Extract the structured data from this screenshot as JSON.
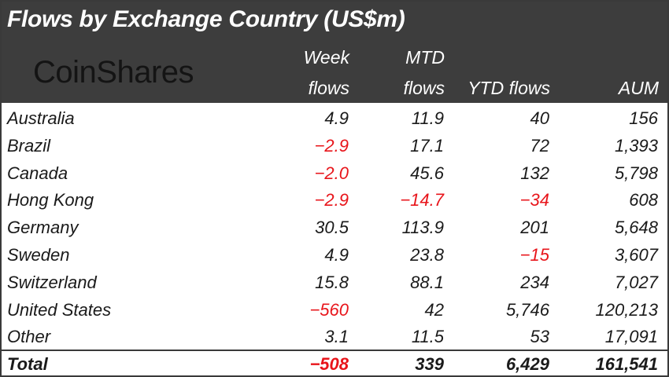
{
  "title": "Flows by Exchange Country (US$m)",
  "logo_text": "CoinShares",
  "colors": {
    "header_bg": "#3d3d3d",
    "negative": "#e8151b",
    "text": "#1a1a1a"
  },
  "columns": {
    "week": [
      "Week",
      "flows"
    ],
    "mtd": [
      "MTD",
      "flows"
    ],
    "ytd": [
      "YTD flows"
    ],
    "aum": [
      "AUM"
    ]
  },
  "rows": [
    {
      "country": "Australia",
      "week": "4.9",
      "mtd": "11.9",
      "ytd": "40",
      "aum": "156"
    },
    {
      "country": "Brazil",
      "week": "-2.9",
      "mtd": "17.1",
      "ytd": "72",
      "aum": "1,393"
    },
    {
      "country": "Canada",
      "week": "-2.0",
      "mtd": "45.6",
      "ytd": "132",
      "aum": "5,798"
    },
    {
      "country": "Hong Kong",
      "week": "-2.9",
      "mtd": "-14.7",
      "ytd": "-34",
      "aum": "608"
    },
    {
      "country": "Germany",
      "week": "30.5",
      "mtd": "113.9",
      "ytd": "201",
      "aum": "5,648"
    },
    {
      "country": "Sweden",
      "week": "4.9",
      "mtd": "23.8",
      "ytd": "-15",
      "aum": "3,607"
    },
    {
      "country": "Switzerland",
      "week": "15.8",
      "mtd": "88.1",
      "ytd": "234",
      "aum": "7,027"
    },
    {
      "country": "United States",
      "week": "-560",
      "mtd": "42",
      "ytd": "5,746",
      "aum": "120,213"
    },
    {
      "country": "Other",
      "week": "3.1",
      "mtd": "11.5",
      "ytd": "53",
      "aum": "17,091"
    }
  ],
  "total": {
    "label": "Total",
    "week": "-508",
    "mtd": "339",
    "ytd": "6,429",
    "aum": "161,541"
  }
}
